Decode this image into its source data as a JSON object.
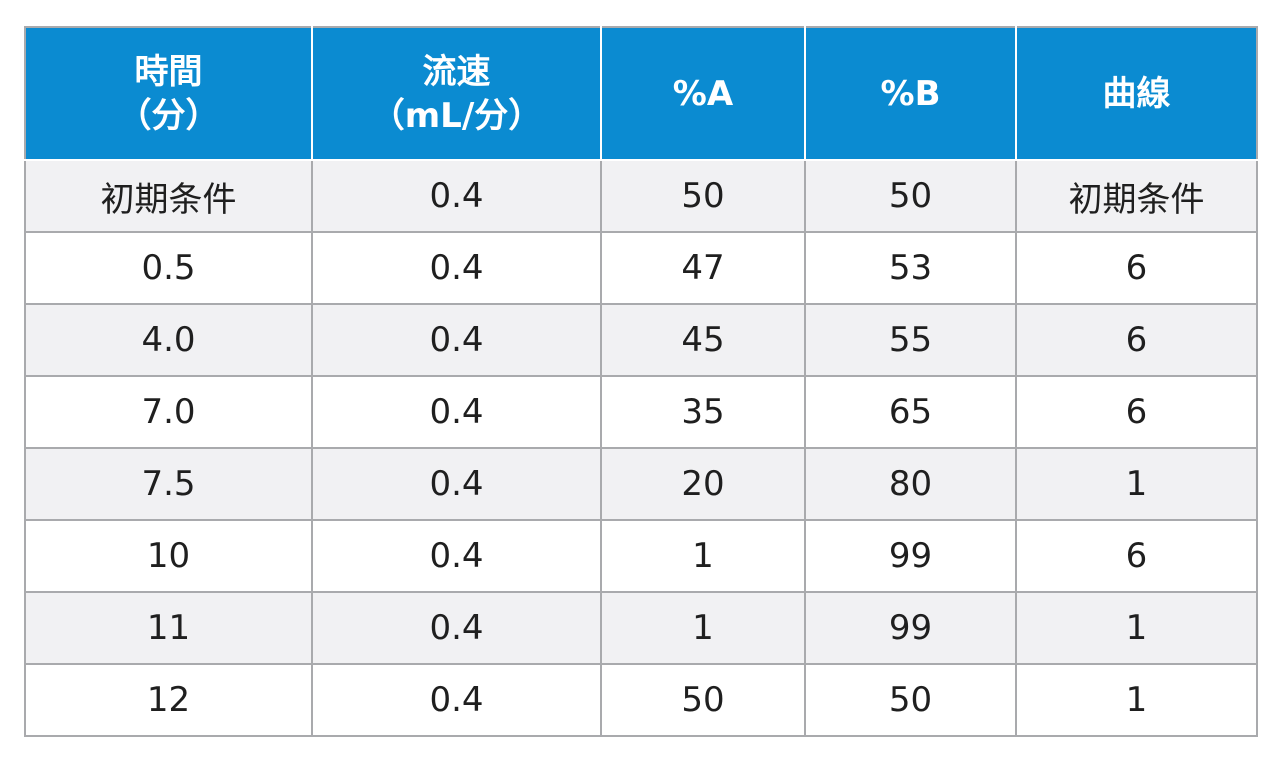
{
  "table": {
    "headers": [
      {
        "line1": "時間",
        "line2": "（分）"
      },
      {
        "line1": "流速",
        "line2": "（mL/分）"
      },
      {
        "line1": "%A",
        "line2": ""
      },
      {
        "line1": "%B",
        "line2": ""
      },
      {
        "line1": "曲線",
        "line2": ""
      }
    ],
    "rows": [
      [
        "初期条件",
        "0.4",
        "50",
        "50",
        "初期条件"
      ],
      [
        "0.5",
        "0.4",
        "47",
        "53",
        "6"
      ],
      [
        "4.0",
        "0.4",
        "45",
        "55",
        "6"
      ],
      [
        "7.0",
        "0.4",
        "35",
        "65",
        "6"
      ],
      [
        "7.5",
        "0.4",
        "20",
        "80",
        "1"
      ],
      [
        "10",
        "0.4",
        "1",
        "99",
        "6"
      ],
      [
        "11",
        "0.4",
        "1",
        "99",
        "1"
      ],
      [
        "12",
        "0.4",
        "50",
        "50",
        "1"
      ]
    ]
  },
  "colors": {
    "header_bg": "#0b8bd1",
    "header_text": "#ffffff",
    "row_alt_bg": "#f1f1f3",
    "border": "#a9aaad"
  }
}
